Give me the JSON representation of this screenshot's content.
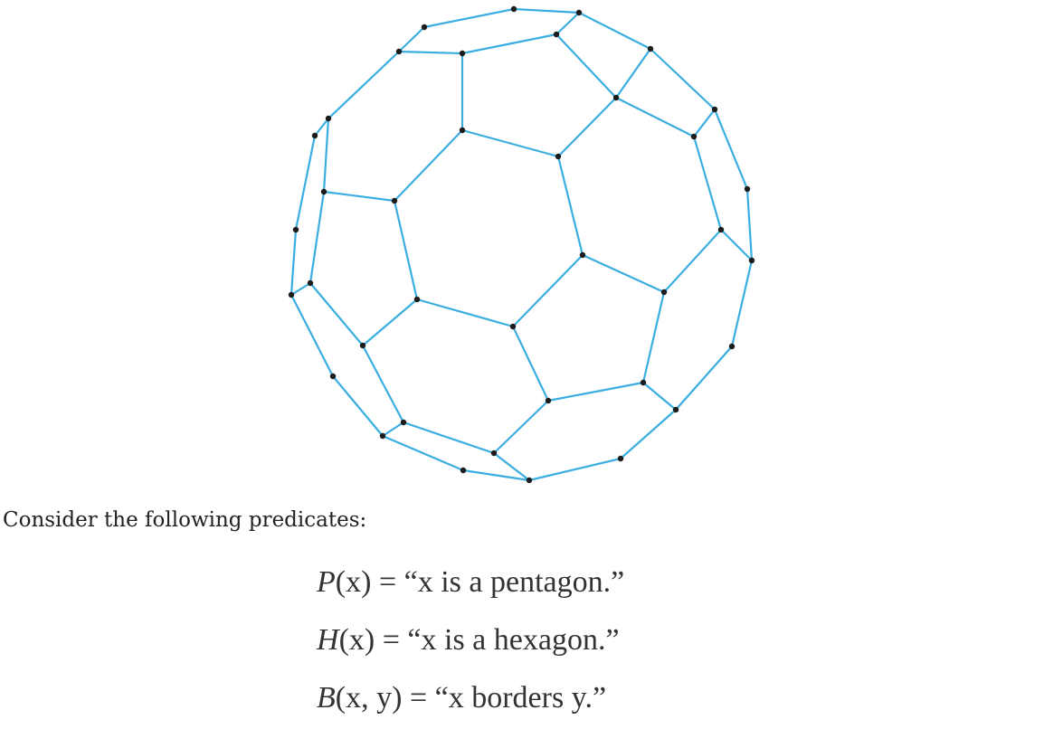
{
  "figure": {
    "description_icon": "truncated-icosahedron-soccer-ball-icon",
    "edge_color": "#3aaee0",
    "vertex_color": "#1c1c1c"
  },
  "text": {
    "intro": "Consider the following predicates:",
    "predicates": [
      {
        "name": "P",
        "args": "(x)",
        "eq": "=",
        "statement": "“x is a pentagon.”"
      },
      {
        "name": "H",
        "args": "(x)",
        "eq": "=",
        "statement": "“x is a hexagon.”"
      },
      {
        "name": "B",
        "args": "(x, y)",
        "eq": "=",
        "statement": "“x borders y.”"
      }
    ]
  }
}
